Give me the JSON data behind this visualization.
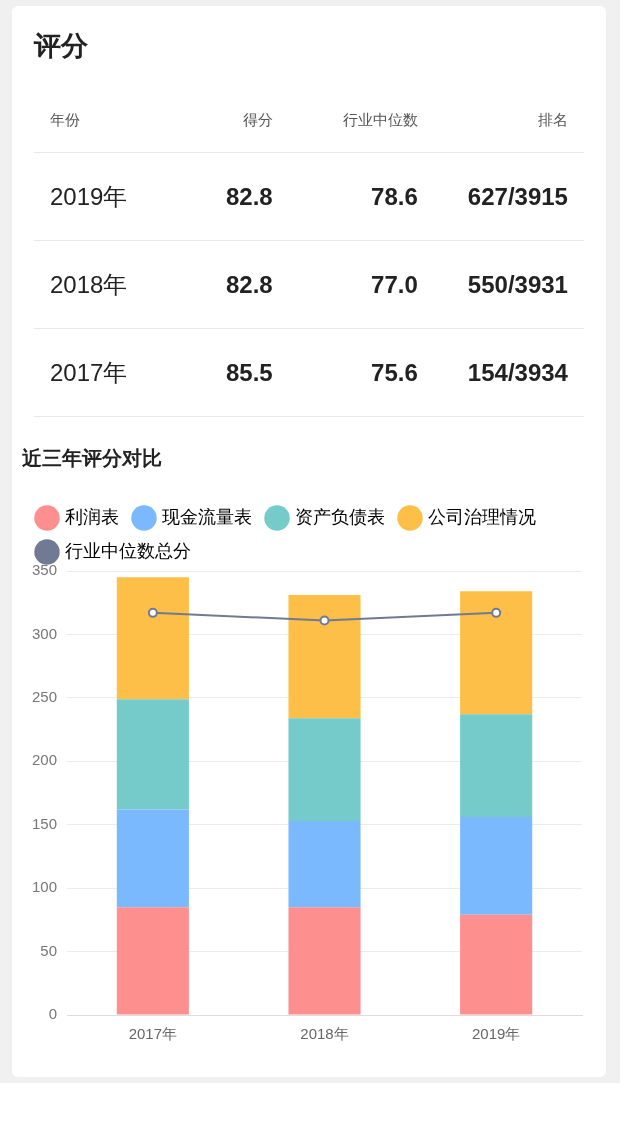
{
  "chart_data": [
    {
      "type": "other",
      "title": "评分",
      "annotations": [
        "年份",
        "得分",
        "行业中位数",
        "排名",
        "2019年",
        "82.8",
        "78.6",
        "627/3915",
        "2018年",
        "82.8",
        "77.0",
        "550/3931",
        "2017年",
        "85.5",
        "75.6",
        "154/3934"
      ]
    },
    {
      "type": "bar",
      "title": "近三年评分对比",
      "stacked": true,
      "categories": [
        "2017年",
        "2018年",
        "2019年"
      ],
      "series": [
        {
          "name": "利润表",
          "color": "#fd8f8f",
          "values": [
            85,
            85,
            79
          ]
        },
        {
          "name": "现金流量表",
          "color": "#7ab9fd",
          "values": [
            77,
            68,
            77
          ]
        },
        {
          "name": "资产负债表",
          "color": "#74cbc9",
          "values": [
            87,
            81,
            81
          ]
        },
        {
          "name": "公司治理情况",
          "color": "#fdbf47",
          "values": [
            96,
            97,
            97
          ]
        },
        {
          "name": "行业中位数总分",
          "color": "#707a93",
          "type": "line",
          "marker": "circle",
          "values": [
            317,
            311,
            317
          ]
        }
      ],
      "ylim": [
        0,
        350
      ],
      "yticks": [
        0,
        50,
        100,
        150,
        200,
        250,
        300,
        350
      ],
      "grid": "y",
      "legend": "top left"
    }
  ]
}
